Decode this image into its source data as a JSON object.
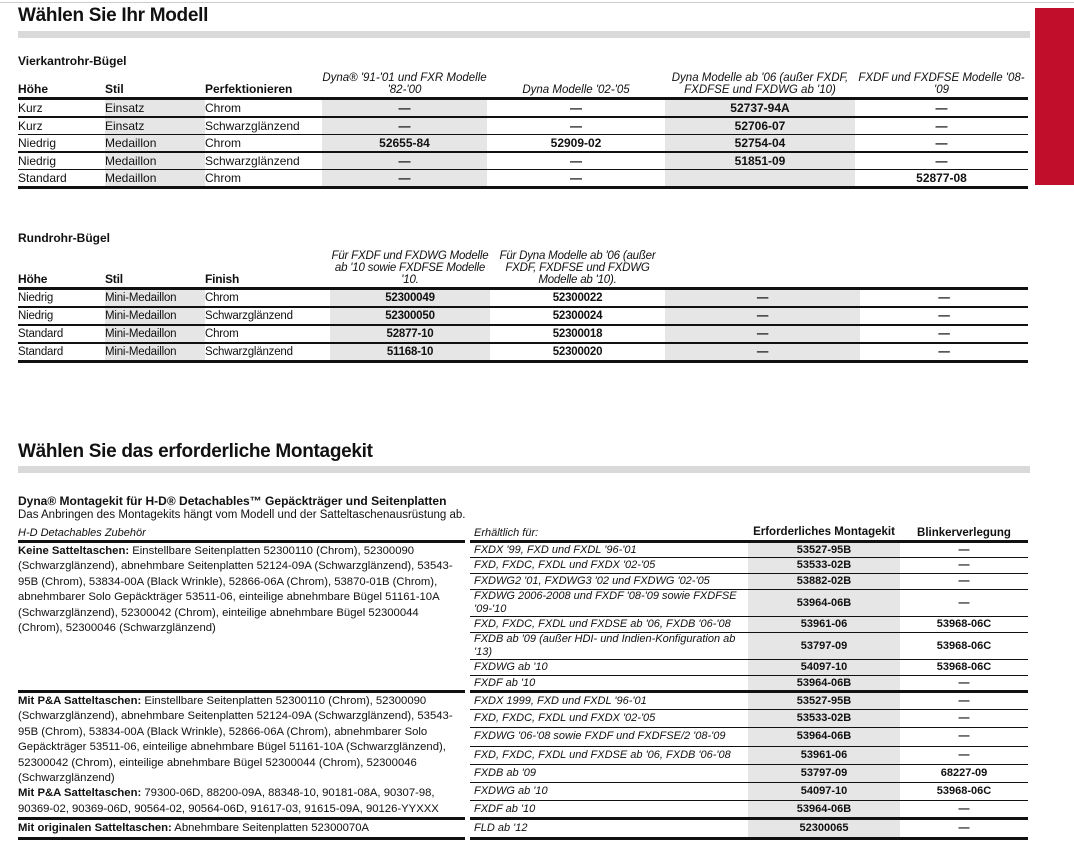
{
  "section1": {
    "title": "Wählen Sie Ihr Modell",
    "square": {
      "title": "Vierkantrohr-Bügel",
      "headers": [
        "Höhe",
        "Stil",
        "Perfektionieren",
        "Dyna® '91-'01 und FXR Modelle '82-'00",
        "Dyna Modelle '02-'05",
        "Dyna Modelle ab '06 (außer FXDF, FXDFSE und FXDWG ab '10)",
        "FXDF und FXDFSE Modelle '08-'09"
      ],
      "rows": [
        [
          "Kurz",
          "Einsatz",
          "Chrom",
          "—",
          "—",
          "52737-94A",
          "—"
        ],
        [
          "Kurz",
          "Einsatz",
          "Schwarzglänzend",
          "—",
          "—",
          "52706-07",
          "—"
        ],
        [
          "Niedrig",
          "Medaillon",
          "Chrom",
          "52655-84",
          "52909-02",
          "52754-04",
          "—"
        ],
        [
          "Niedrig",
          "Medaillon",
          "Schwarzglänzend",
          "—",
          "—",
          "51851-09",
          "—"
        ],
        [
          "Standard",
          "Medaillon",
          "Chrom",
          "—",
          "—",
          "",
          "52877-08"
        ]
      ]
    },
    "round": {
      "title": "Rundrohr-Bügel",
      "headers": [
        "Höhe",
        "Stil",
        "Finish",
        "Für FXDF und FXDWG Modelle ab '10 sowie FXDFSE Modelle '10.",
        "Für Dyna Modelle ab '06 (außer FXDF, FXDFSE und FXDWG Modelle ab '10).",
        "",
        ""
      ],
      "rows": [
        [
          "Niedrig",
          "Mini-Medaillon",
          "Chrom",
          "52300049",
          "52300022",
          "—",
          "—"
        ],
        [
          "Niedrig",
          "Mini-Medaillon",
          "Schwarzglänzend",
          "52300050",
          "52300024",
          "—",
          "—"
        ],
        [
          "Standard",
          "Mini-Medaillon",
          "Chrom",
          "52877-10",
          "52300018",
          "—",
          "—"
        ],
        [
          "Standard",
          "Mini-Medaillon",
          "Schwarzglänzend",
          "51168-10",
          "52300020",
          "—",
          "—"
        ]
      ]
    }
  },
  "section2": {
    "title": "Wählen Sie das erforderliche Montagekit",
    "subtitle": "Dyna® Montagekit für H-D® Detachables™ Gepäckträger und Seitenplatten",
    "note": "Das Anbringen des Montagekits hängt vom Modell und der Satteltaschenausrüstung ab.",
    "headers": [
      "H-D Detachables Zubehör",
      "Erhältlich für:",
      "Erforderliches Montagekit",
      "Blinkerverlegung"
    ],
    "groups": [
      {
        "texts": [
          {
            "label": "Keine Satteltaschen:",
            "text": " Einstellbare Seitenplatten 52300110 (Chrom), 52300090 (Schwarzglänzend), abnehmbare Seitenplatten 52124-09A (Schwarzglänzend), 53543-95B (Chrom), 53834-00A (Black Wrinkle), 52866-06A (Chrom), 53870-01B (Chrom), abnehmbarer Solo Gepäckträger 53511-06, einteilige abnehmbare Bügel 51161-10A (Schwarzglänzend), 52300042 (Chrom), einteilige abnehmbare Bügel 52300044 (Chrom), 52300046 (Schwarzglänzend)"
          }
        ],
        "rows": [
          [
            "FXDX '99, FXD und FXDL '96-'01",
            "53527-95B",
            "—"
          ],
          [
            "FXD, FXDC, FXDL und FXDX '02-'05",
            "53533-02B",
            "—"
          ],
          [
            "FXDWG2 '01, FXDWG3 '02 und FXDWG '02-'05",
            "53882-02B",
            "—"
          ],
          [
            "FXDWG 2006-2008 und FXDF '08-'09 sowie FXDFSE '09-'10",
            "53964-06B",
            "—"
          ],
          [
            "FXD, FXDC, FXDL und FXDSE ab '06, FXDB '06-'08",
            "53961-06",
            "53968-06C"
          ],
          [
            "FXDB ab '09 (außer HDI- und Indien-Konfiguration ab '13)",
            "53797-09",
            "53968-06C"
          ],
          [
            "FXDWG ab '10",
            "54097-10",
            "53968-06C"
          ],
          [
            "FXDF ab '10",
            "53964-06B",
            "—"
          ]
        ]
      },
      {
        "texts": [
          {
            "label": "Mit P&A Satteltaschen:",
            "text": " Einstellbare Seitenplatten 52300110 (Chrom), 52300090 (Schwarzglänzend), abnehmbare Seitenplatten 52124-09A (Schwarzglänzend), 53543-95B (Chrom), 53834-00A (Black Wrinkle), 52866-06A (Chrom), abnehmbarer Solo Gepäckträger 53511-06, einteilige abnehmbare Bügel 51161-10A (Schwarzglänzend), 52300042 (Chrom), einteilige abnehmbare Bügel 52300044 (Chrom), 52300046 (Schwarzglänzend)"
          },
          {
            "label": "Mit P&A Satteltaschen:",
            "text": " 79300-06D, 88200-09A, 88348-10, 90181-08A, 90307-98, 90369-02, 90369-06D, 90564-02, 90564-06D, 91617-03, 91615-09A, 90126-YYXXX"
          }
        ],
        "rows": [
          [
            "FXDX 1999, FXD und FXDL '96-'01",
            "53527-95B",
            "—"
          ],
          [
            "FXD, FXDC, FXDL und FXDX '02-'05",
            "53533-02B",
            "—"
          ],
          [
            "FXDWG '06-'08 sowie FXDF und FXDFSE/2 '08-'09",
            "53964-06B",
            "—"
          ],
          [
            "FXD, FXDC, FXDL und FXDSE ab '06, FXDB '06-'08",
            "53961-06",
            "—"
          ],
          [
            "FXDB ab '09",
            "53797-09",
            "68227-09"
          ],
          [
            "FXDWG ab '10",
            "54097-10",
            "53968-06C"
          ],
          [
            "FXDF ab '10",
            "53964-06B",
            "—"
          ]
        ]
      },
      {
        "texts": [
          {
            "label": "Mit originalen Satteltaschen:",
            "text": " Abnehmbare Seitenplatten 52300070A"
          }
        ],
        "rows": [
          [
            "FLD ab '12",
            "52300065",
            "—"
          ]
        ]
      }
    ]
  },
  "colors": {
    "accent": "#c10e2b",
    "shade": "#e6e6e6",
    "bar": "#d9d9d9"
  }
}
